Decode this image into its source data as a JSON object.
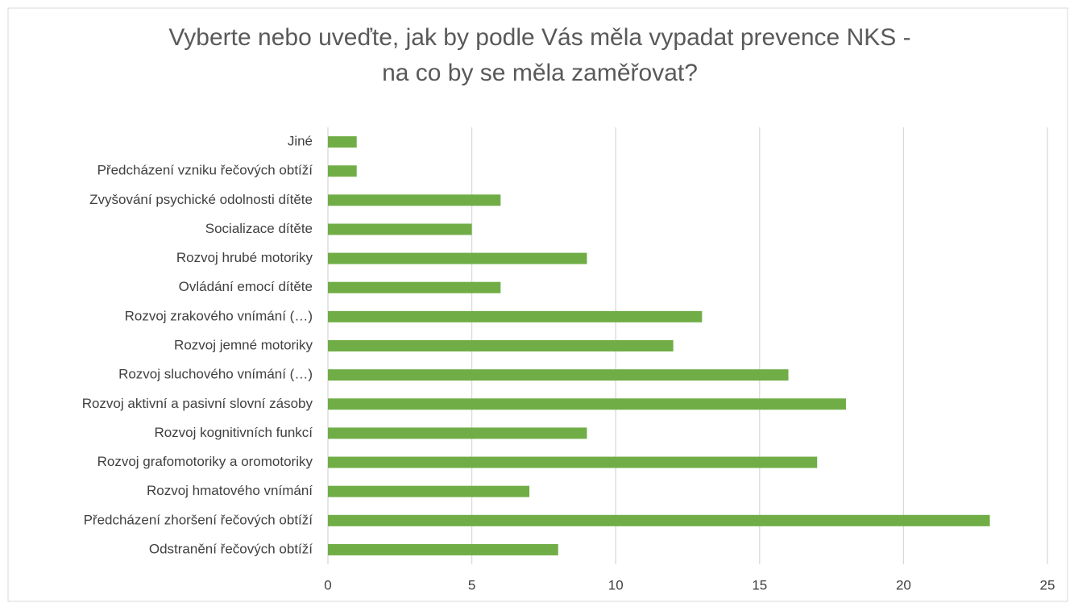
{
  "chart_data": {
    "type": "bar",
    "orientation": "horizontal",
    "title": [
      "Vyberte nebo uveďte, jak by podle Vás měla vypadat prevence NKS -",
      "na co by se měla zaměřovat?"
    ],
    "categories": [
      "Jiné",
      "Předcházení vzniku řečových obtíží",
      "Zvyšování psychické odolnosti dítěte",
      "Socializace dítěte",
      "Rozvoj hrubé motoriky",
      "Ovládání emocí dítěte",
      "Rozvoj zrakového vnímání (…)",
      "Rozvoj jemné motoriky",
      "Rozvoj sluchového vnímání (…)",
      "Rozvoj aktivní a pasivní slovní zásoby",
      "Rozvoj kognitivních funkcí",
      "Rozvoj grafomotoriky a oromotoriky",
      "Rozvoj hmatového vnímání",
      "Předcházení zhoršení řečových obtíží",
      "Odstranění řečových obtíží"
    ],
    "values": [
      1,
      1,
      6,
      5,
      9,
      6,
      13,
      12,
      16,
      18,
      9,
      17,
      7,
      23,
      8
    ],
    "color": "#70ad47",
    "xlim": [
      0,
      25
    ],
    "xticks": [
      0,
      5,
      10,
      15,
      20,
      25
    ],
    "grid": true
  }
}
